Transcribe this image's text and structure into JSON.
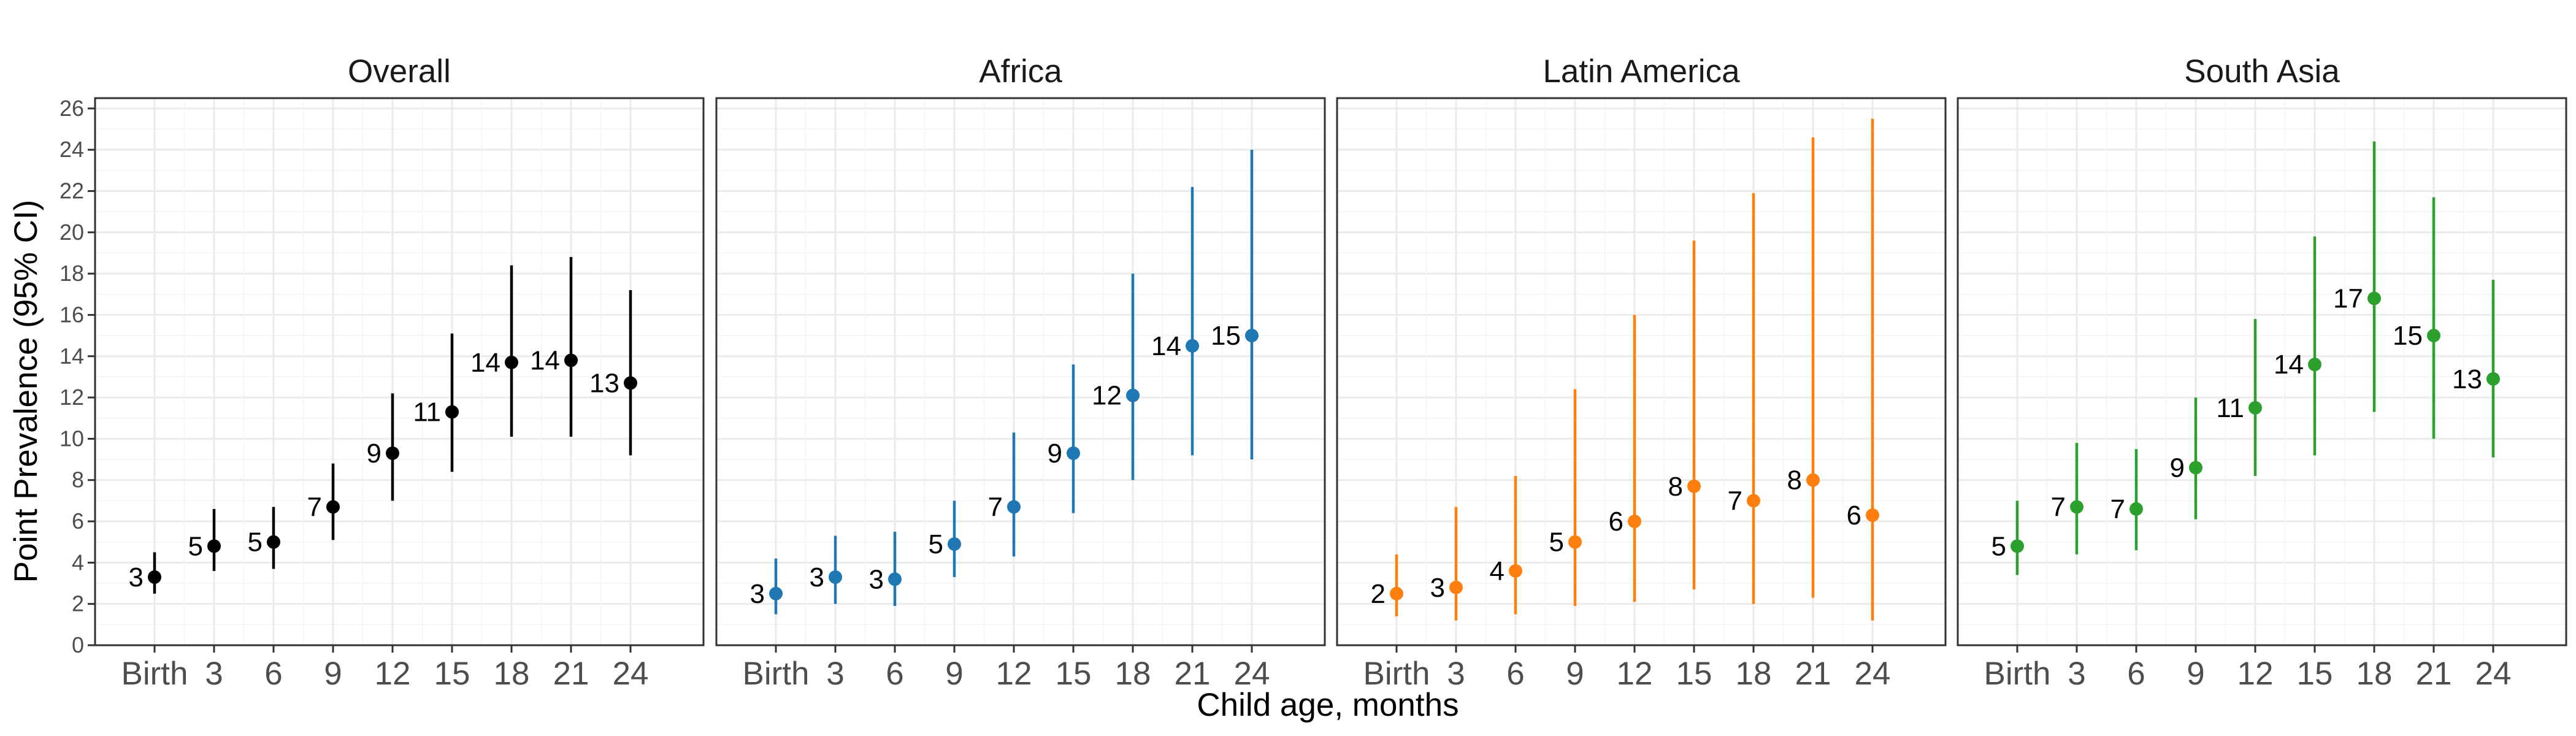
{
  "chart_data": {
    "type": "scatter",
    "ylabel": "Point Prevalence (95% CI)",
    "xlabel": "Child age, months",
    "categories": [
      "Birth",
      "3",
      "6",
      "9",
      "12",
      "15",
      "18",
      "21",
      "24"
    ],
    "ylim": [
      0,
      26.5
    ],
    "yticks": [
      0,
      2,
      4,
      6,
      8,
      10,
      12,
      14,
      16,
      18,
      20,
      22,
      24,
      26
    ],
    "grid": true,
    "panels": [
      {
        "title": "Overall",
        "color": "#000000",
        "estimates": [
          3.3,
          4.8,
          5.0,
          6.7,
          9.3,
          11.3,
          13.7,
          13.8,
          12.7
        ],
        "lower": [
          2.5,
          3.6,
          3.7,
          5.1,
          7.0,
          8.4,
          10.1,
          10.1,
          9.2
        ],
        "upper": [
          4.5,
          6.6,
          6.7,
          8.8,
          12.2,
          15.1,
          18.4,
          18.8,
          17.2
        ],
        "labels": [
          "3",
          "5",
          "5",
          "7",
          "9",
          "11",
          "14",
          "14",
          "13"
        ]
      },
      {
        "title": "Africa",
        "color": "#1f77b4",
        "estimates": [
          2.5,
          3.3,
          3.2,
          4.9,
          6.7,
          9.3,
          12.1,
          14.5,
          15.0
        ],
        "lower": [
          1.5,
          2.0,
          1.9,
          3.3,
          4.3,
          6.4,
          8.0,
          9.2,
          9.0
        ],
        "upper": [
          4.2,
          5.3,
          5.5,
          7.0,
          10.3,
          13.6,
          18.0,
          22.2,
          24.0
        ],
        "labels": [
          "3",
          "3",
          "3",
          "5",
          "7",
          "9",
          "12",
          "14",
          "15"
        ]
      },
      {
        "title": "Latin America",
        "color": "#ff7f0e",
        "estimates": [
          2.5,
          2.8,
          3.6,
          5.0,
          6.0,
          7.7,
          7.0,
          8.0,
          6.3
        ],
        "lower": [
          1.4,
          1.2,
          1.5,
          1.9,
          2.1,
          2.7,
          2.0,
          2.3,
          1.2
        ],
        "upper": [
          4.4,
          6.7,
          8.2,
          12.4,
          16.0,
          19.6,
          21.9,
          24.6,
          25.5
        ],
        "labels": [
          "2",
          "3",
          "4",
          "5",
          "6",
          "8",
          "7",
          "8",
          "6"
        ]
      },
      {
        "title": "South Asia",
        "color": "#2ca02c",
        "estimates": [
          4.8,
          6.7,
          6.6,
          8.6,
          11.5,
          13.6,
          16.8,
          15.0,
          12.9
        ],
        "lower": [
          3.4,
          4.4,
          4.6,
          6.1,
          8.2,
          9.2,
          11.3,
          10.0,
          9.1
        ],
        "upper": [
          7.0,
          9.8,
          9.5,
          12.0,
          15.8,
          19.8,
          24.4,
          21.7,
          17.7
        ],
        "labels": [
          "5",
          "7",
          "7",
          "9",
          "11",
          "14",
          "17",
          "15",
          "13"
        ]
      }
    ]
  }
}
